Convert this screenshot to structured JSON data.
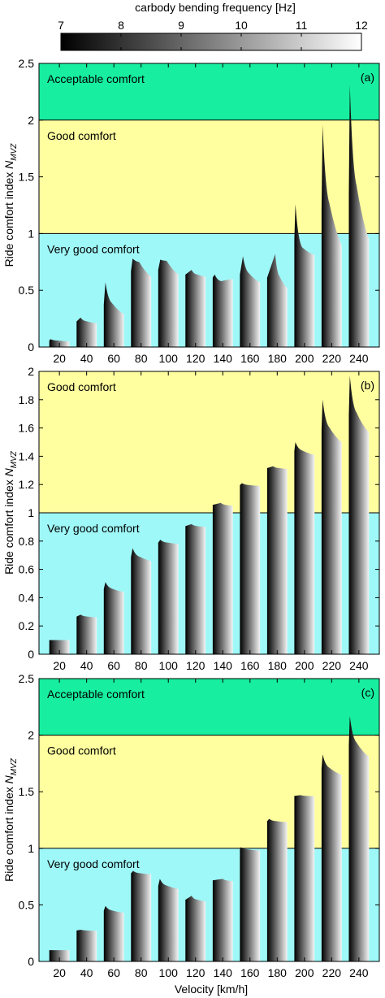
{
  "colorbar": {
    "label": "carbody bending frequency [Hz]",
    "ticks": [
      "7",
      "8",
      "9",
      "10",
      "11",
      "12"
    ],
    "range": [
      7,
      12
    ]
  },
  "colors": {
    "acceptable": "#17ee9f",
    "good": "#ffff9f",
    "very_good": "#9ff8f8",
    "axis": "#000000"
  },
  "chart_data": [
    {
      "type": "bar",
      "panel_label": "(a)",
      "ylabel": "Ride comfort index ",
      "ylabel_sub": "MVZ",
      "ylabel_n": "N",
      "xlabel": "",
      "categories": [
        "20",
        "40",
        "60",
        "80",
        "100",
        "120",
        "140",
        "160",
        "180",
        "200",
        "220",
        "240"
      ],
      "ylim": [
        0,
        2.5
      ],
      "yticks": [
        "0",
        "0.5",
        "1",
        "1.5",
        "2",
        "2.5"
      ],
      "zones": [
        {
          "label": "Very good comfort",
          "from": 0,
          "to": 1
        },
        {
          "label": "Good comfort",
          "from": 1,
          "to": 2
        },
        {
          "label": "Acceptable comfort",
          "from": 2,
          "to": 2.5
        }
      ],
      "bars": [
        {
          "peak": 0.07,
          "end": 0.05,
          "peakPos": 0.05
        },
        {
          "peak": 0.26,
          "end": 0.21,
          "peakPos": 0.2
        },
        {
          "peak": 0.57,
          "end": 0.29,
          "peakPos": 0.08
        },
        {
          "peak": 0.78,
          "end": 0.62,
          "peakPos": 0.08,
          "bump": 0.75
        },
        {
          "peak": 0.77,
          "end": 0.64,
          "peakPos": 0.1,
          "bump": 0.76
        },
        {
          "peak": 0.68,
          "end": 0.62,
          "peakPos": 0.3
        },
        {
          "peak": 0.64,
          "end": 0.6,
          "peakPos": 0.1,
          "bump": 0.58
        },
        {
          "peak": 0.8,
          "end": 0.57,
          "peakPos": 0.15
        },
        {
          "peak": 0.82,
          "end": 0.52,
          "peakPos": 0.4
        },
        {
          "peak": 1.26,
          "end": 0.81,
          "peakPos": 0.05,
          "bump": 0.88
        },
        {
          "peak": 1.96,
          "end": 0.9,
          "peakPos": 0.05
        },
        {
          "peak": 2.31,
          "end": 0.95,
          "peakPos": 0.05
        }
      ]
    },
    {
      "type": "bar",
      "panel_label": "(b)",
      "ylabel": "Ride comfort index ",
      "ylabel_sub": "MVZ",
      "ylabel_n": "N",
      "xlabel": "",
      "categories": [
        "20",
        "40",
        "60",
        "80",
        "100",
        "120",
        "140",
        "160",
        "180",
        "200",
        "220",
        "240"
      ],
      "ylim": [
        0,
        2
      ],
      "yticks": [
        "0",
        "0.2",
        "0.4",
        "0.6",
        "0.8",
        "1",
        "1.2",
        "1.4",
        "1.6",
        "1.8",
        "2"
      ],
      "zones": [
        {
          "label": "Very good comfort",
          "from": 0,
          "to": 1
        },
        {
          "label": "Good comfort",
          "from": 1,
          "to": 2
        }
      ],
      "bars": [
        {
          "peak": 0.1,
          "end": 0.1,
          "peakPos": 0.5
        },
        {
          "peak": 0.28,
          "end": 0.26,
          "peakPos": 0.2
        },
        {
          "peak": 0.51,
          "end": 0.44,
          "peakPos": 0.08
        },
        {
          "peak": 0.75,
          "end": 0.66,
          "peakPos": 0.08
        },
        {
          "peak": 0.81,
          "end": 0.78,
          "peakPos": 0.1
        },
        {
          "peak": 0.92,
          "end": 0.9,
          "peakPos": 0.3
        },
        {
          "peak": 1.07,
          "end": 1.05,
          "peakPos": 0.4
        },
        {
          "peak": 1.21,
          "end": 1.19,
          "peakPos": 0.1
        },
        {
          "peak": 1.33,
          "end": 1.31,
          "peakPos": 0.3
        },
        {
          "peak": 1.5,
          "end": 1.41,
          "peakPos": 0.05
        },
        {
          "peak": 1.8,
          "end": 1.5,
          "peakPos": 0.05
        },
        {
          "peak": 1.97,
          "end": 1.57,
          "peakPos": 0.05
        }
      ]
    },
    {
      "type": "bar",
      "panel_label": "(c)",
      "ylabel": "Ride comfort index ",
      "ylabel_sub": "MVZ",
      "ylabel_n": "N",
      "xlabel": "Velocity [km/h]",
      "categories": [
        "20",
        "40",
        "60",
        "80",
        "100",
        "120",
        "140",
        "160",
        "180",
        "200",
        "220",
        "240"
      ],
      "ylim": [
        0,
        2.5
      ],
      "yticks": [
        "0",
        "0.5",
        "1",
        "1.5",
        "2",
        "2.5"
      ],
      "zones": [
        {
          "label": "Very good comfort",
          "from": 0,
          "to": 1
        },
        {
          "label": "Good comfort",
          "from": 1,
          "to": 2
        },
        {
          "label": "Acceptable comfort",
          "from": 2,
          "to": 2.5
        }
      ],
      "bars": [
        {
          "peak": 0.1,
          "end": 0.1,
          "peakPos": 0.5
        },
        {
          "peak": 0.28,
          "end": 0.27,
          "peakPos": 0.2
        },
        {
          "peak": 0.49,
          "end": 0.43,
          "peakPos": 0.08
        },
        {
          "peak": 0.8,
          "end": 0.77,
          "peakPos": 0.1
        },
        {
          "peak": 0.73,
          "end": 0.64,
          "peakPos": 0.08
        },
        {
          "peak": 0.58,
          "end": 0.53,
          "peakPos": 0.3
        },
        {
          "peak": 0.73,
          "end": 0.71,
          "peakPos": 0.5
        },
        {
          "peak": 1.01,
          "end": 0.98,
          "peakPos": 0.05
        },
        {
          "peak": 1.26,
          "end": 1.23,
          "peakPos": 0.1
        },
        {
          "peak": 1.47,
          "end": 1.46,
          "peakPos": 0.3
        },
        {
          "peak": 1.83,
          "end": 1.65,
          "peakPos": 0.05
        },
        {
          "peak": 2.17,
          "end": 1.81,
          "peakPos": 0.05
        }
      ]
    }
  ]
}
